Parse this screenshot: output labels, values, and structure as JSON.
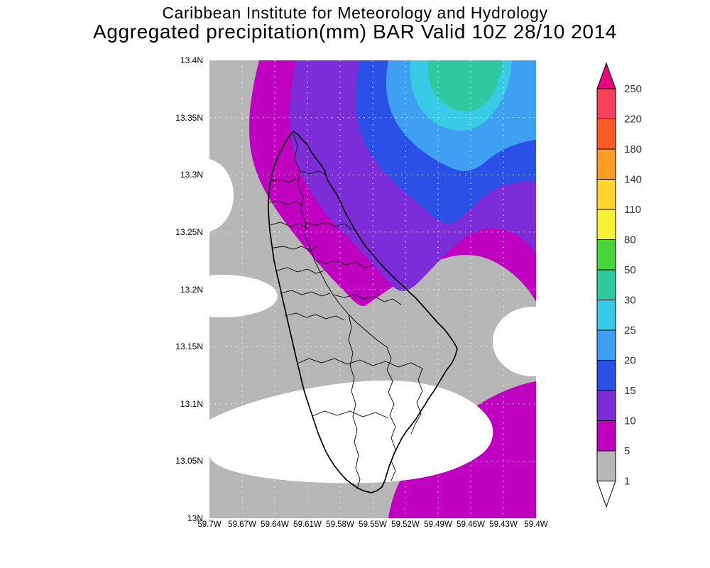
{
  "header": {
    "title_line1": "Caribbean Institute for Meteorology and Hydrology",
    "title_line2": "Aggregated precipitation(mm) BAR Valid 10Z 28/10 2014"
  },
  "map": {
    "lat_ticks": [
      "13.4N",
      "13.35N",
      "13.3N",
      "13.25N",
      "13.2N",
      "13.15N",
      "13.1N",
      "13.05N",
      "13N"
    ],
    "lon_ticks": [
      "59.7W",
      "59.67W",
      "59.64W",
      "59.61W",
      "59.58W",
      "59.55W",
      "59.52W",
      "59.49W",
      "59.46W",
      "59.43W",
      "59.4W"
    ]
  },
  "field": {
    "colors": {
      "white": "#ffffff",
      "gray": "#b7b7b7",
      "magenta": "#c000c0",
      "purple": "#7d2dd8",
      "blue": "#2b50e8",
      "light_blue": "#3f9ff2",
      "cyan": "#38cbe8",
      "teal": "#2ec9a0"
    }
  },
  "colorbar": {
    "tick_labels": [
      "250",
      "220",
      "180",
      "140",
      "110",
      "80",
      "50",
      "30",
      "25",
      "20",
      "15",
      "10",
      "5",
      "1"
    ],
    "segment_colors": [
      "#f5415a",
      "#fb5b26",
      "#fe9b27",
      "#ffd430",
      "#f8f13a",
      "#49d43d",
      "#2ec9a0",
      "#38cbe8",
      "#3f9ff2",
      "#2b50e8",
      "#7d2dd8",
      "#c000c0",
      "#b7b7b7"
    ],
    "arrow_top_color": "#e6067f",
    "arrow_bottom_color": "#ffffff",
    "ranges": [
      "> 250",
      "220-250",
      "180-220",
      "140-180",
      "110-140",
      "80-110",
      "50-80",
      "30-50",
      "25-30",
      "20-25",
      "15-20",
      "10-15",
      "5-10",
      "1-5",
      "< 1"
    ]
  }
}
